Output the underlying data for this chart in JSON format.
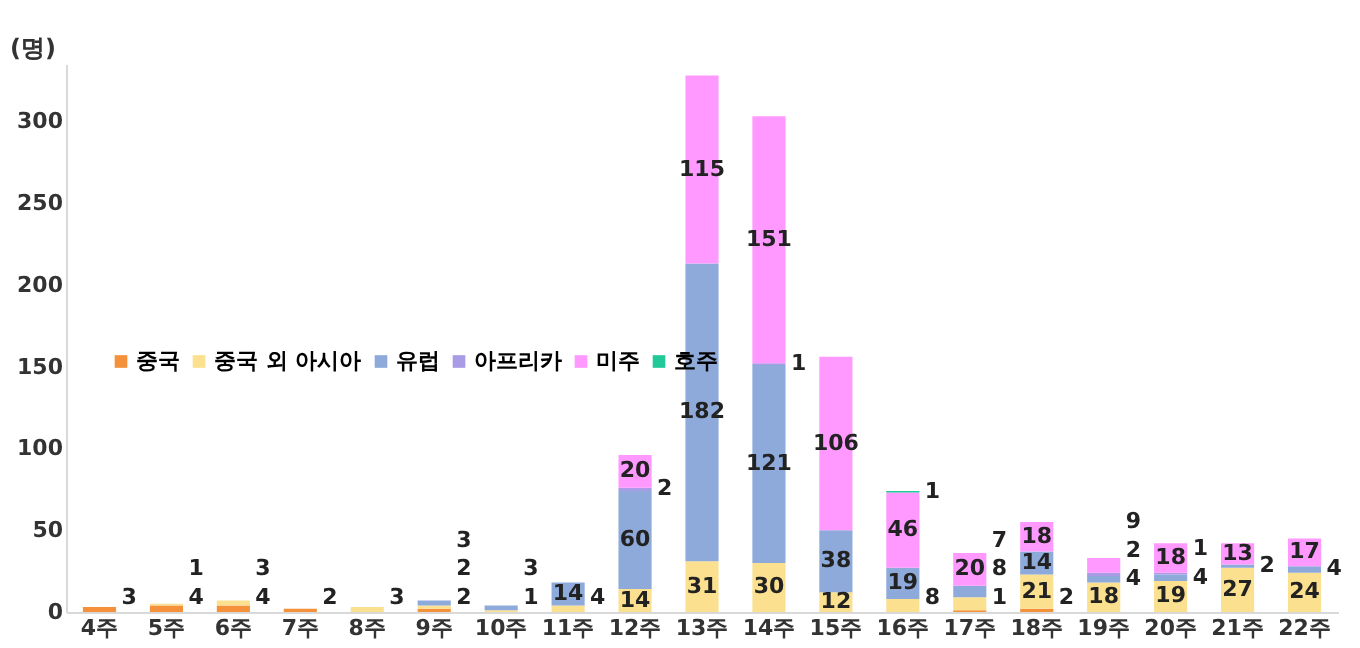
{
  "chart_data": {
    "type": "bar",
    "stacked": true,
    "ylabel": "(명)",
    "categories": [
      "4주",
      "5주",
      "6주",
      "7주",
      "8주",
      "9주",
      "10주",
      "11주",
      "12주",
      "13주",
      "14주",
      "15주",
      "16주",
      "17주",
      "18주",
      "19주",
      "20주",
      "21주",
      "22주"
    ],
    "series": [
      {
        "name": "중국",
        "color": "#f4913a",
        "values": [
          3,
          4,
          4,
          2,
          null,
          2,
          null,
          null,
          null,
          null,
          null,
          null,
          null,
          1,
          2,
          null,
          null,
          null,
          null
        ]
      },
      {
        "name": "중국 외 아시아",
        "color": "#fbe08f",
        "values": [
          null,
          1,
          3,
          null,
          3,
          2,
          1,
          4,
          14,
          31,
          30,
          12,
          8,
          8,
          21,
          18,
          19,
          27,
          24
        ]
      },
      {
        "name": "유럽",
        "color": "#8eaadb",
        "values": [
          null,
          null,
          null,
          null,
          null,
          3,
          3,
          14,
          60,
          182,
          121,
          38,
          19,
          7,
          14,
          4,
          4,
          2,
          4
        ]
      },
      {
        "name": "아프리카",
        "color": "#a99be6",
        "values": [
          null,
          null,
          null,
          null,
          null,
          null,
          null,
          null,
          2,
          null,
          1,
          null,
          null,
          null,
          null,
          2,
          1,
          null,
          null
        ]
      },
      {
        "name": "미주",
        "color": "#ff99ff",
        "values": [
          null,
          null,
          null,
          null,
          null,
          null,
          null,
          null,
          20,
          115,
          151,
          106,
          46,
          20,
          18,
          9,
          18,
          13,
          17
        ]
      },
      {
        "name": "호주",
        "color": "#20c997",
        "values": [
          null,
          null,
          null,
          null,
          null,
          null,
          null,
          null,
          null,
          null,
          null,
          null,
          1,
          null,
          null,
          null,
          null,
          null,
          null
        ]
      }
    ],
    "ylim": [
      0,
      335
    ],
    "yticks": [
      0,
      50,
      100,
      150,
      200,
      250,
      300
    ],
    "grid": false,
    "legend": "left",
    "data_labels": true
  }
}
